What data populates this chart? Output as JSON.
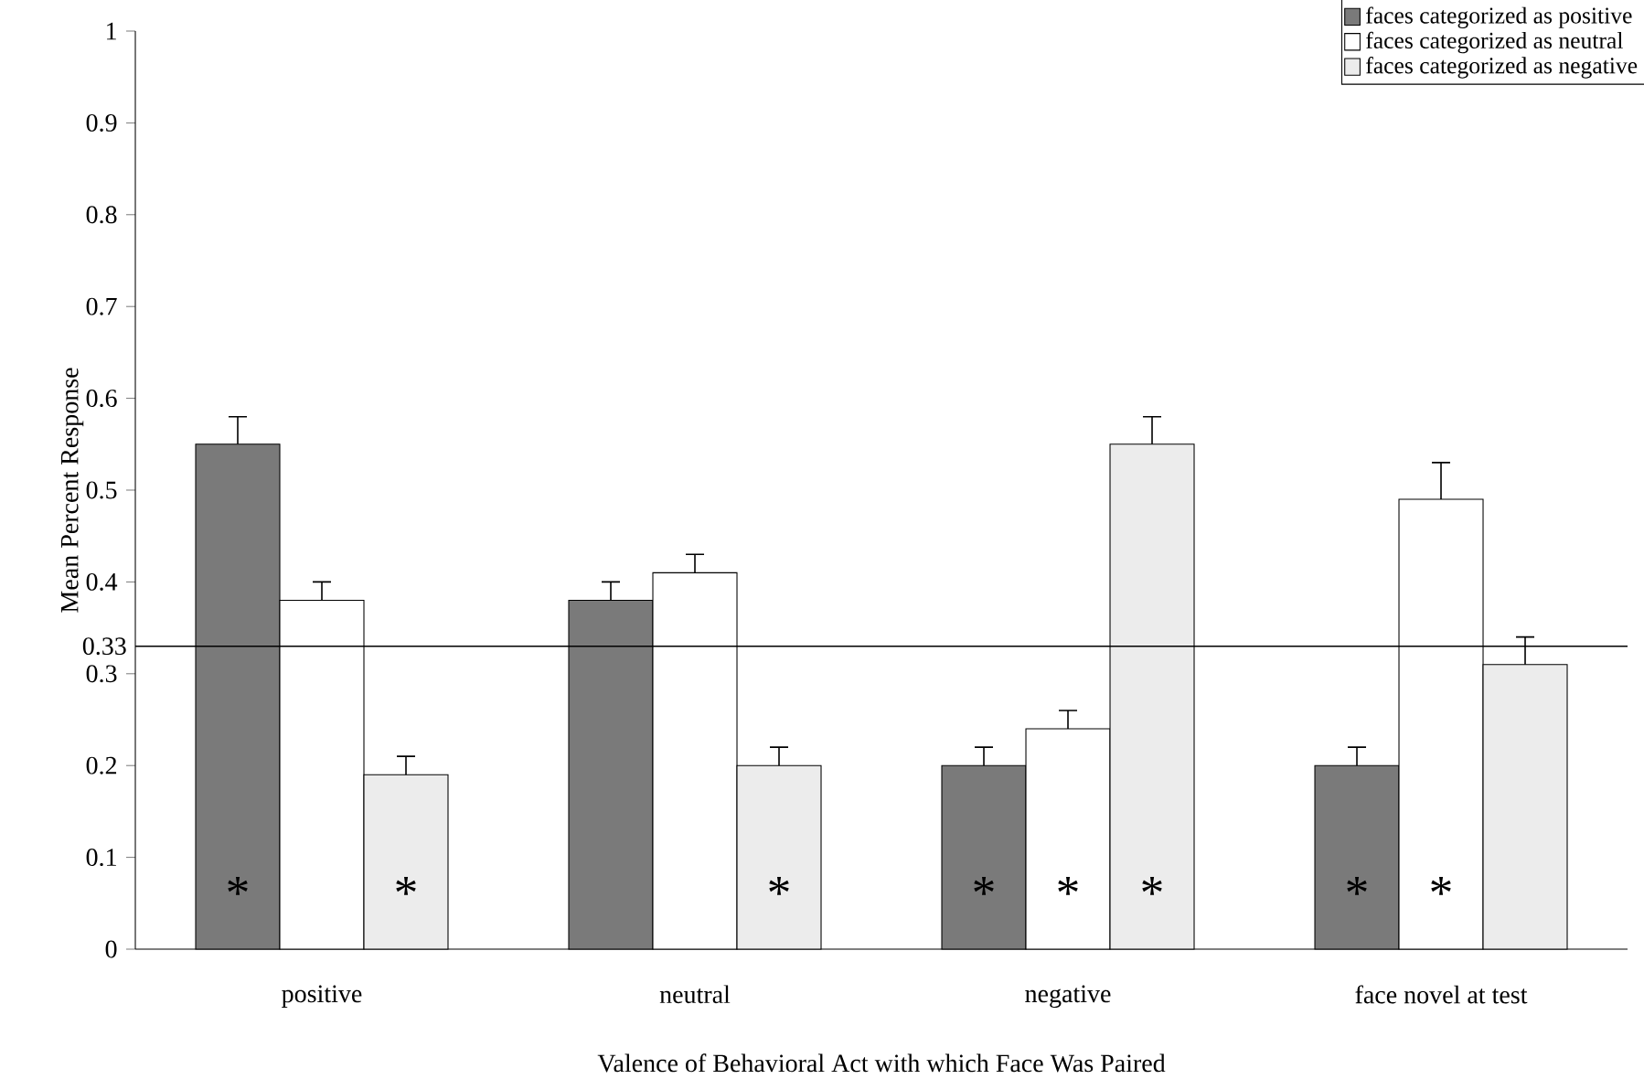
{
  "chart_data": {
    "type": "bar",
    "xlabel": "Valence of Behavioral Act with which Face Was Paired",
    "ylabel": "Mean Percent Response",
    "categories": [
      "positive",
      "neutral",
      "negative",
      "face novel at test"
    ],
    "series": [
      {
        "name": "faces categorized as positive",
        "color": "#7a7a7a",
        "values": [
          0.55,
          0.38,
          0.2,
          0.2
        ],
        "errors": [
          [
            0.55,
            0.58
          ],
          [
            0.38,
            0.4
          ],
          [
            0.2,
            0.22
          ],
          [
            0.2,
            0.22
          ]
        ],
        "value_labels": [
          "*",
          null,
          "*",
          "*"
        ]
      },
      {
        "name": "faces categorized as neutral",
        "color": "#ffffff",
        "values": [
          0.38,
          0.41,
          0.24,
          0.49
        ],
        "errors": [
          [
            0.38,
            0.4
          ],
          [
            0.41,
            0.43
          ],
          [
            0.24,
            0.26
          ],
          [
            0.49,
            0.53
          ]
        ],
        "value_labels": [
          null,
          null,
          "*",
          "*"
        ]
      },
      {
        "name": "faces categorized as negative",
        "color": "#ececec",
        "values": [
          0.19,
          0.2,
          0.55,
          0.31
        ],
        "errors": [
          [
            0.19,
            0.21
          ],
          [
            0.2,
            0.22
          ],
          [
            0.55,
            0.58
          ],
          [
            0.31,
            0.34
          ]
        ],
        "value_labels": [
          "*",
          "*",
          "*",
          null
        ]
      }
    ],
    "ylim": [
      0,
      1
    ],
    "yticks": [
      0,
      0.1,
      0.2,
      0.3,
      0.4,
      0.5,
      0.6,
      0.7,
      0.8,
      0.9,
      1
    ],
    "ref_lines": [
      {
        "axis": "y",
        "value": 0.33,
        "label": "0.33",
        "color": "#000000"
      }
    ],
    "legend": "top right",
    "grid": false
  }
}
